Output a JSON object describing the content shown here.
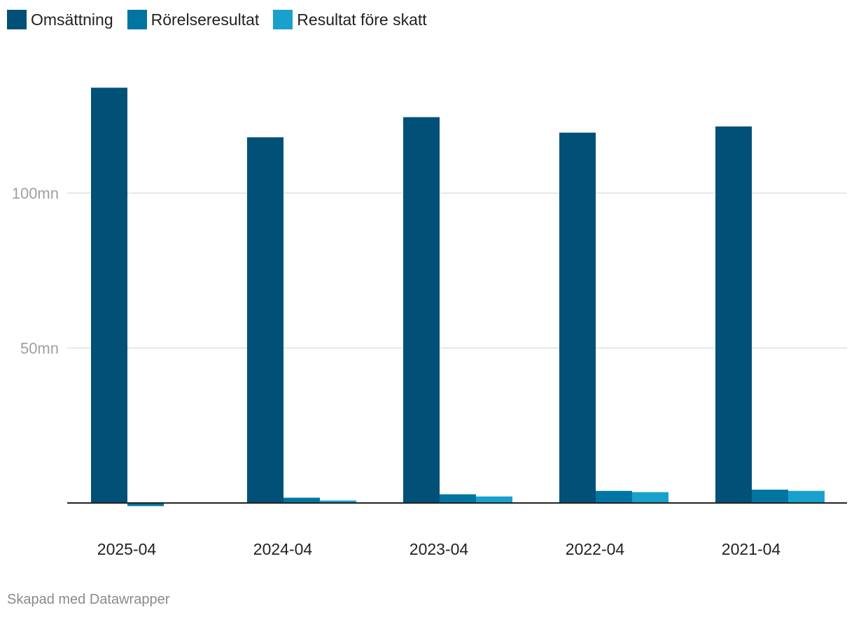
{
  "chart_data": {
    "type": "bar",
    "categories": [
      "2025-04",
      "2024-04",
      "2023-04",
      "2022-04",
      "2021-04"
    ],
    "series": [
      {
        "name": "Omsättning",
        "color": "#005078",
        "values": [
          134,
          118,
          124.5,
          119.5,
          121.5
        ]
      },
      {
        "name": "Rörelseresultat",
        "color": "#0075a1",
        "values": [
          -1,
          1.7,
          2.8,
          3.9,
          4.3
        ]
      },
      {
        "name": "Resultat före skatt",
        "color": "#18a1cd",
        "values": [
          0,
          0.8,
          2.1,
          3.5,
          3.9
        ]
      }
    ],
    "yticks": [
      {
        "value": 50,
        "label": "50mn"
      },
      {
        "value": 100,
        "label": "100mn"
      }
    ],
    "ylim": [
      0,
      150
    ],
    "grid": true,
    "legend": "top-left"
  },
  "footer": {
    "credit": "Skapad med Datawrapper"
  }
}
